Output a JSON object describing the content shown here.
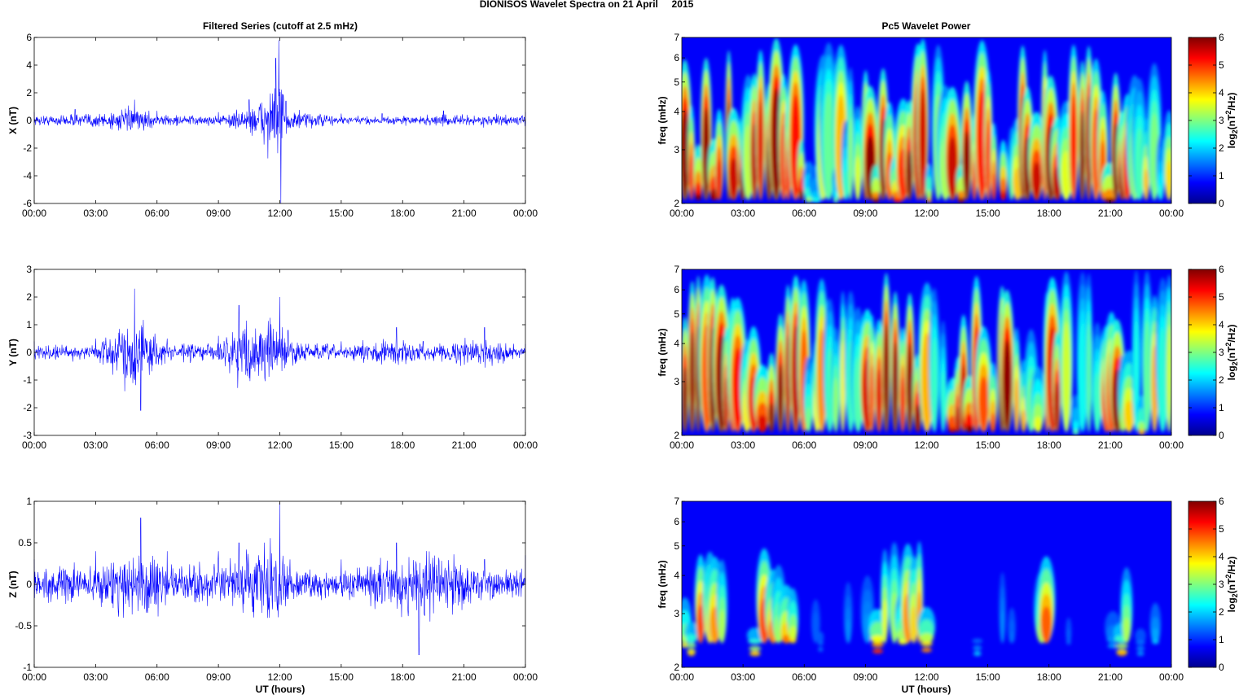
{
  "figure": {
    "suptitle": "DIONISOS Wavelet Spectra on 21 April     2015",
    "left_title": "Filtered Series (cutoff at 2.5 mHz)",
    "right_title": "Pc5 Wavelet Power",
    "xlabel": "UT (hours)",
    "freq_label": "freq (mHz)",
    "colorbar_label": "log2(nT2/Hz)",
    "colorbar_ticks": [
      "0",
      "1",
      "2",
      "3",
      "4",
      "5",
      "6"
    ],
    "time_ticks": [
      "00:00",
      "03:00",
      "06:00",
      "09:00",
      "12:00",
      "15:00",
      "18:00",
      "21:00",
      "00:00"
    ],
    "freq_ticks": [
      "2",
      "3",
      "4",
      "5",
      "6",
      "7"
    ],
    "line_color": "#0000ff",
    "colormap": "jet"
  },
  "chart_data": [
    {
      "type": "line",
      "title": "Filtered Series (cutoff at 2.5 mHz)",
      "ylabel": "X (nT)",
      "ylim": [
        -6,
        6
      ],
      "yticks": [
        "-6",
        "-4",
        "-2",
        "0",
        "2",
        "4",
        "6"
      ],
      "xlim_hours": [
        0,
        24
      ],
      "series": [
        {
          "x_hours": [
            0,
            2,
            4.9,
            6,
            9,
            10.5,
            11.8,
            11.95,
            12.05,
            12.3,
            15,
            17,
            20,
            24
          ],
          "amplitude_envelope": [
            0.6,
            0.8,
            1.5,
            0.7,
            0.6,
            1.5,
            4.5,
            5.8,
            -6,
            1.4,
            0.5,
            0.5,
            0.7,
            0.6
          ]
        }
      ]
    },
    {
      "type": "heatmap",
      "title": "Pc5 Wavelet Power",
      "ylabel": "freq (mHz)",
      "ylim": [
        2,
        7
      ],
      "zlim": [
        0,
        6
      ],
      "xlim_hours": [
        0,
        24
      ],
      "active_windows_hours": [
        [
          0,
          3
        ],
        [
          3.5,
          6
        ],
        [
          9,
          12
        ],
        [
          13,
          16
        ],
        [
          16.5,
          18.5
        ],
        [
          19,
          22
        ]
      ]
    },
    {
      "type": "line",
      "ylabel": "Y (nT)",
      "ylim": [
        -3,
        3
      ],
      "yticks": [
        "-3",
        "-2",
        "-1",
        "0",
        "1",
        "2",
        "3"
      ],
      "xlim_hours": [
        0,
        24
      ],
      "series": [
        {
          "x_hours": [
            0,
            3,
            4.9,
            5.2,
            6.5,
            9,
            10,
            12,
            12.4,
            15,
            17.7,
            19,
            22,
            24
          ],
          "amplitude_envelope": [
            0.4,
            0.5,
            2.3,
            -2.1,
            0.5,
            0.6,
            1.7,
            2.0,
            0.8,
            0.4,
            0.9,
            0.4,
            0.9,
            0.3
          ]
        }
      ]
    },
    {
      "type": "heatmap",
      "ylabel": "freq (mHz)",
      "ylim": [
        2,
        7
      ],
      "zlim": [
        0,
        6
      ],
      "xlim_hours": [
        0,
        24
      ],
      "active_windows_hours": [
        [
          0,
          3
        ],
        [
          3.5,
          6
        ],
        [
          9,
          12
        ],
        [
          13,
          16
        ],
        [
          17.5,
          18.5
        ],
        [
          20.5,
          21.5
        ]
      ]
    },
    {
      "type": "line",
      "ylabel": "Z (nT)",
      "ylim": [
        -1,
        1
      ],
      "yticks": [
        "-1",
        "-0.5",
        "0",
        "0.5",
        "1"
      ],
      "xlim_hours": [
        0,
        24
      ],
      "series": [
        {
          "x_hours": [
            0,
            3,
            5.2,
            6.5,
            9,
            10,
            12,
            12.5,
            15,
            17.7,
            18.8,
            22,
            24
          ],
          "amplitude_envelope": [
            0.3,
            0.4,
            0.8,
            0.4,
            0.4,
            0.5,
            0.98,
            0.3,
            0.3,
            0.5,
            -0.85,
            0.3,
            0.35
          ]
        }
      ]
    },
    {
      "type": "heatmap",
      "ylabel": "freq (mHz)",
      "ylim": [
        2,
        7
      ],
      "zlim": [
        0,
        6
      ],
      "xlim_hours": [
        0,
        24
      ],
      "active_windows_hours": [
        [
          0,
          2
        ],
        [
          3.5,
          5.5
        ],
        [
          9.5,
          12
        ],
        [
          17.5,
          18
        ],
        [
          21.5,
          22
        ]
      ]
    }
  ]
}
